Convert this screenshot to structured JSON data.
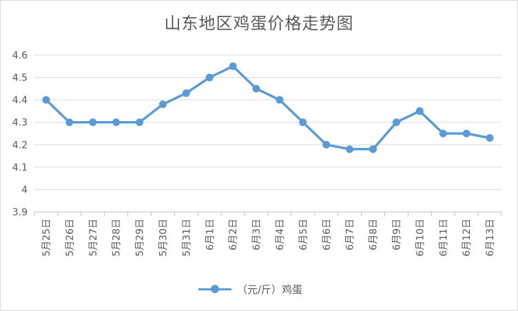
{
  "chart_data": {
    "type": "line",
    "title": "山东地区鸡蛋价格走势图",
    "xlabel": "",
    "ylabel": "",
    "categories": [
      "5月25日",
      "5月26日",
      "5月27日",
      "5月28日",
      "5月29日",
      "5月30日",
      "5月31日",
      "6月1日",
      "6月2日",
      "6月3日",
      "6月4日",
      "6月5日",
      "6月6日",
      "6月7日",
      "6月8日",
      "6月9日",
      "6月10日",
      "6月11日",
      "6月12日",
      "6月13日"
    ],
    "series": [
      {
        "name": "（元/斤）鸡蛋",
        "values": [
          4.4,
          4.3,
          4.3,
          4.3,
          4.3,
          4.38,
          4.43,
          4.5,
          4.55,
          4.45,
          4.4,
          4.3,
          4.2,
          4.18,
          4.18,
          4.3,
          4.35,
          4.25,
          4.25,
          4.23
        ]
      }
    ],
    "ylim": [
      3.9,
      4.6
    ],
    "yticks": [
      "4.6",
      "4.5",
      "4.4",
      "4.3",
      "4.2",
      "4.1",
      "4",
      "3.9"
    ],
    "grid": true,
    "legend": "bottom",
    "color": "#5b9bd5"
  }
}
